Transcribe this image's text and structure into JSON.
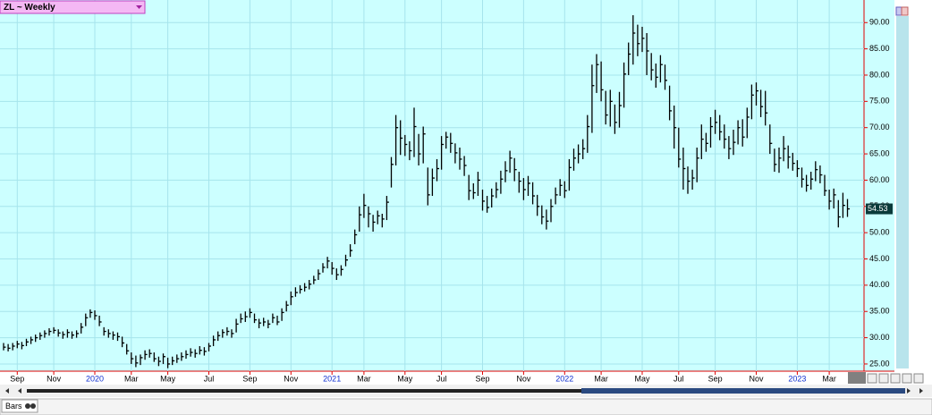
{
  "chart_data": {
    "type": "hlc",
    "title": "ZL ~ Weekly",
    "tab": "Bars",
    "categories": [
      null,
      null,
      null,
      "Sep",
      null,
      null,
      null,
      null,
      null,
      null,
      null,
      "Nov",
      null,
      null,
      null,
      null,
      null,
      null,
      null,
      null,
      "2020",
      null,
      null,
      null,
      null,
      null,
      null,
      null,
      "Mar",
      null,
      null,
      null,
      null,
      null,
      null,
      null,
      "May",
      null,
      null,
      null,
      null,
      null,
      null,
      null,
      null,
      "Jul",
      null,
      null,
      null,
      null,
      null,
      null,
      null,
      null,
      "Sep",
      null,
      null,
      null,
      null,
      null,
      null,
      null,
      null,
      "Nov",
      null,
      null,
      null,
      null,
      null,
      null,
      null,
      null,
      "2021",
      null,
      null,
      null,
      null,
      null,
      null,
      "Mar",
      null,
      null,
      null,
      null,
      null,
      null,
      null,
      null,
      "May",
      null,
      null,
      null,
      null,
      null,
      null,
      null,
      "Jul",
      null,
      null,
      null,
      null,
      null,
      null,
      null,
      null,
      "Sep",
      null,
      null,
      null,
      null,
      null,
      null,
      null,
      null,
      "Nov",
      null,
      null,
      null,
      null,
      null,
      null,
      null,
      null,
      "2022",
      null,
      null,
      null,
      null,
      null,
      null,
      null,
      "Mar",
      null,
      null,
      null,
      null,
      null,
      null,
      null,
      null,
      "May",
      null,
      null,
      null,
      null,
      null,
      null,
      null,
      "Jul",
      null,
      null,
      null,
      null,
      null,
      null,
      null,
      "Sep",
      null,
      null,
      null,
      null,
      null,
      null,
      null,
      null,
      "Nov",
      null,
      null,
      null,
      null,
      null,
      null,
      null,
      null,
      "2023",
      null,
      null,
      null,
      null,
      null,
      null,
      "Mar",
      null,
      null,
      null,
      null
    ],
    "high": [
      29.0,
      28.8,
      29.0,
      29.4,
      29.2,
      29.8,
      30.2,
      30.6,
      31.0,
      31.4,
      31.8,
      32.0,
      31.6,
      31.2,
      31.6,
      31.2,
      31.4,
      32.8,
      34.6,
      35.4,
      35.2,
      34.2,
      32.0,
      31.6,
      31.2,
      31.0,
      30.2,
      28.8,
      27.2,
      26.6,
      26.8,
      27.6,
      27.8,
      27.2,
      26.4,
      27.0,
      26.2,
      26.4,
      26.8,
      27.2,
      27.6,
      28.0,
      27.8,
      28.4,
      28.2,
      29.0,
      30.4,
      31.2,
      31.6,
      32.0,
      31.6,
      33.6,
      34.6,
      35.0,
      35.6,
      34.6,
      33.6,
      33.8,
      33.4,
      34.6,
      34.2,
      35.6,
      37.0,
      38.8,
      39.6,
      40.0,
      40.4,
      41.0,
      41.8,
      43.0,
      44.2,
      45.4,
      44.4,
      43.2,
      43.8,
      45.8,
      47.8,
      50.6,
      55.0,
      57.4,
      55.0,
      53.4,
      54.2,
      53.6,
      57.0,
      64.4,
      72.4,
      71.4,
      68.6,
      67.4,
      73.8,
      68.8,
      70.2,
      62.4,
      62.2,
      64.0,
      68.4,
      69.2,
      69.0,
      67.0,
      66.2,
      64.6,
      61.0,
      59.4,
      61.6,
      58.2,
      57.0,
      58.4,
      59.6,
      61.8,
      63.6,
      65.6,
      64.2,
      61.6,
      60.4,
      60.8,
      59.6,
      57.2,
      55.2,
      54.4,
      56.4,
      58.6,
      60.2,
      59.8,
      64.0,
      66.0,
      66.8,
      67.8,
      72.4,
      82.0,
      84.0,
      82.6,
      77.0,
      77.2,
      74.4,
      76.8,
      82.4,
      86.2,
      91.4,
      89.6,
      89.2,
      88.0,
      84.2,
      82.2,
      83.8,
      82.0,
      78.0,
      74.2,
      70.0,
      66.2,
      62.6,
      62.0,
      66.2,
      70.6,
      69.0,
      72.0,
      73.4,
      72.4,
      70.6,
      68.4,
      69.6,
      71.4,
      71.6,
      73.8,
      78.2,
      78.6,
      77.2,
      77.0,
      70.6,
      66.0,
      66.2,
      68.4,
      66.6,
      65.2,
      63.8,
      62.4,
      61.0,
      61.6,
      63.6,
      62.8,
      61.0,
      58.2,
      58.4,
      56.2,
      57.6,
      56.4
    ],
    "low": [
      27.6,
      27.4,
      27.6,
      28.0,
      27.8,
      28.4,
      28.8,
      29.2,
      29.6,
      30.0,
      30.4,
      30.8,
      30.2,
      29.8,
      30.0,
      29.8,
      30.0,
      30.8,
      32.2,
      33.8,
      33.4,
      32.2,
      30.4,
      30.0,
      29.6,
      29.4,
      28.2,
      26.8,
      25.0,
      24.4,
      24.8,
      25.8,
      26.2,
      25.4,
      24.6,
      25.0,
      24.2,
      24.8,
      25.2,
      25.6,
      26.0,
      26.4,
      26.2,
      26.8,
      26.6,
      27.4,
      28.4,
      29.4,
      30.0,
      30.4,
      30.0,
      31.0,
      32.8,
      33.0,
      33.8,
      32.8,
      31.8,
      32.2,
      31.8,
      32.8,
      32.4,
      33.2,
      35.0,
      36.2,
      37.8,
      38.4,
      38.8,
      39.2,
      40.2,
      41.0,
      42.4,
      43.2,
      42.0,
      41.0,
      41.8,
      43.6,
      45.4,
      47.8,
      50.2,
      52.8,
      51.0,
      50.2,
      51.6,
      51.0,
      52.4,
      58.6,
      62.8,
      64.8,
      64.6,
      63.8,
      64.4,
      62.8,
      63.2,
      55.2,
      57.0,
      59.8,
      62.0,
      66.0,
      65.2,
      63.2,
      62.0,
      60.8,
      56.2,
      56.4,
      57.0,
      54.2,
      53.8,
      54.8,
      56.6,
      57.4,
      59.6,
      61.4,
      59.8,
      57.6,
      56.2,
      57.0,
      55.4,
      53.2,
      51.6,
      50.6,
      52.0,
      55.4,
      57.0,
      56.6,
      58.0,
      61.8,
      63.2,
      64.0,
      65.2,
      69.0,
      76.6,
      75.0,
      70.6,
      70.2,
      68.8,
      70.0,
      73.8,
      80.0,
      82.0,
      83.6,
      84.4,
      80.0,
      79.0,
      77.6,
      78.6,
      77.2,
      71.4,
      66.0,
      62.4,
      58.2,
      57.4,
      58.2,
      59.6,
      64.0,
      65.4,
      66.2,
      68.8,
      67.6,
      66.0,
      64.0,
      64.8,
      66.8,
      66.4,
      68.0,
      71.6,
      74.2,
      72.0,
      70.4,
      65.0,
      61.6,
      61.4,
      63.6,
      62.2,
      61.8,
      60.6,
      58.6,
      57.8,
      58.2,
      59.8,
      59.4,
      57.0,
      54.4,
      54.6,
      51.0,
      52.8,
      53.0
    ],
    "close": [
      28.2,
      28.0,
      28.4,
      28.8,
      28.5,
      29.2,
      29.6,
      30.0,
      30.4,
      30.8,
      31.2,
      31.4,
      30.9,
      30.6,
      31.0,
      30.5,
      30.8,
      32.0,
      33.8,
      34.8,
      34.2,
      33.0,
      31.2,
      30.8,
      30.5,
      30.2,
      29.0,
      27.5,
      26.0,
      25.2,
      26.2,
      26.8,
      27.0,
      26.0,
      25.5,
      26.4,
      25.0,
      25.6,
      26.0,
      26.4,
      26.8,
      27.2,
      27.0,
      27.6,
      27.4,
      28.4,
      29.6,
      30.4,
      31.0,
      31.2,
      30.8,
      32.6,
      33.6,
      34.0,
      34.8,
      33.4,
      32.8,
      33.0,
      32.6,
      33.8,
      33.0,
      34.8,
      36.2,
      37.8,
      38.6,
      39.2,
      39.6,
      40.2,
      41.0,
      42.2,
      43.4,
      44.6,
      43.2,
      42.0,
      43.0,
      44.8,
      46.6,
      49.6,
      53.4,
      55.2,
      53.6,
      52.0,
      53.2,
      52.6,
      55.8,
      63.0,
      70.0,
      68.0,
      66.8,
      65.6,
      70.2,
      65.0,
      68.8,
      57.2,
      60.4,
      62.2,
      66.8,
      68.2,
      67.0,
      65.2,
      64.0,
      62.8,
      58.0,
      57.6,
      60.0,
      56.0,
      54.8,
      57.0,
      58.2,
      60.2,
      61.8,
      64.2,
      62.0,
      59.8,
      58.2,
      59.4,
      57.0,
      55.0,
      53.0,
      52.2,
      55.0,
      57.2,
      59.0,
      58.0,
      62.4,
      64.2,
      65.0,
      66.0,
      70.2,
      78.0,
      82.0,
      77.2,
      72.4,
      75.0,
      71.0,
      74.2,
      80.2,
      84.0,
      88.0,
      86.0,
      87.0,
      84.6,
      81.0,
      79.6,
      82.0,
      79.0,
      73.2,
      70.0,
      64.0,
      62.2,
      59.8,
      60.4,
      64.2,
      67.8,
      67.0,
      70.2,
      71.0,
      69.2,
      67.8,
      66.0,
      67.2,
      70.0,
      68.2,
      72.0,
      76.2,
      77.0,
      74.0,
      72.8,
      67.0,
      63.0,
      64.2,
      66.0,
      64.4,
      63.2,
      62.2,
      60.2,
      59.0,
      60.2,
      62.0,
      61.0,
      58.0,
      56.0,
      57.2,
      53.0,
      55.2,
      54.53
    ],
    "color": "#000000",
    "ylim": [
      23.8,
      94.3
    ],
    "yticks": [
      {
        "value": 25,
        "label": "25.00"
      },
      {
        "value": 30,
        "label": "30.00"
      },
      {
        "value": 35,
        "label": "35.00"
      },
      {
        "value": 40,
        "label": "40.00"
      },
      {
        "value": 45,
        "label": "45.00"
      },
      {
        "value": 50,
        "label": "50.00"
      },
      {
        "value": 55,
        "label": "55.00"
      },
      {
        "value": 60,
        "label": "60.00"
      },
      {
        "value": 65,
        "label": "65.00"
      },
      {
        "value": 70,
        "label": "70.00"
      },
      {
        "value": 75,
        "label": "75.00"
      },
      {
        "value": 80,
        "label": "80.00"
      },
      {
        "value": 85,
        "label": "85.00"
      },
      {
        "value": 90,
        "label": "90.00"
      }
    ],
    "grid": true
  }
}
